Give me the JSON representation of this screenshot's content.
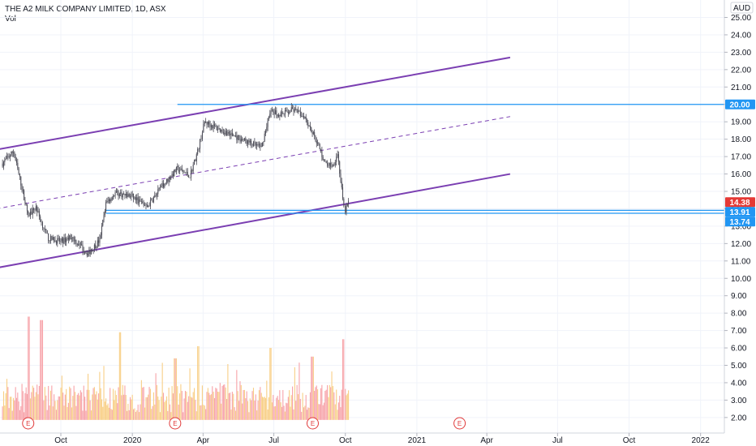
{
  "header": {
    "title": "THE A2 MILK COMPANY LIMITED, 1D, ASX",
    "sub": "Vol"
  },
  "currency": "AUD",
  "colors": {
    "channel": "#7b3fb2",
    "hline": "#2196f3",
    "price_tag_red": "#e53935",
    "price_tag_blue": "#2196f3",
    "candle_up": "#4a4a55",
    "candle_down": "#4a4a55",
    "vol_a": "#f7a3a9",
    "vol_b": "#f8cf86"
  },
  "chart_data": {
    "type": "candlestick",
    "y_axis": {
      "min": 2.0,
      "max": 25.0,
      "ticks": [
        "25.00",
        "24.00",
        "23.00",
        "22.00",
        "21.00",
        "20.00",
        "19.00",
        "18.00",
        "17.00",
        "16.00",
        "15.00",
        "14.00",
        "13.00",
        "12.00",
        "11.00",
        "10.00",
        "9.00",
        "8.00",
        "7.00",
        "6.00",
        "5.00",
        "4.00",
        "3.00",
        "2.00"
      ],
      "scale": "linear",
      "grid": true
    },
    "x_axis": {
      "ticks": [
        {
          "label": "Oct",
          "date": "2019-10-01"
        },
        {
          "label": "2020",
          "date": "2020-01-01"
        },
        {
          "label": "Apr",
          "date": "2020-04-01"
        },
        {
          "label": "Jul",
          "date": "2020-07-01"
        },
        {
          "label": "Oct",
          "date": "2020-10-01"
        },
        {
          "label": "2021",
          "date": "2021-01-01"
        },
        {
          "label": "Apr",
          "date": "2021-04-01"
        },
        {
          "label": "Jul",
          "date": "2021-07-01"
        },
        {
          "label": "Oct",
          "date": "2021-10-01"
        },
        {
          "label": "2022",
          "date": "2022-01-01"
        }
      ]
    },
    "price_path": [
      {
        "date": "2019-07-18",
        "price": 16.6
      },
      {
        "date": "2019-08-01",
        "price": 17.3
      },
      {
        "date": "2019-08-12",
        "price": 15.2
      },
      {
        "date": "2019-08-20",
        "price": 13.6
      },
      {
        "date": "2019-08-30",
        "price": 14.1
      },
      {
        "date": "2019-09-06",
        "price": 13.2
      },
      {
        "date": "2019-09-15",
        "price": 12.3
      },
      {
        "date": "2019-10-01",
        "price": 12.1
      },
      {
        "date": "2019-10-15",
        "price": 12.4
      },
      {
        "date": "2019-10-25",
        "price": 11.9
      },
      {
        "date": "2019-11-05",
        "price": 11.4
      },
      {
        "date": "2019-11-20",
        "price": 12.2
      },
      {
        "date": "2019-11-28",
        "price": 14.3
      },
      {
        "date": "2019-12-10",
        "price": 14.9
      },
      {
        "date": "2020-01-01",
        "price": 14.7
      },
      {
        "date": "2020-01-20",
        "price": 14.1
      },
      {
        "date": "2020-02-10",
        "price": 15.4
      },
      {
        "date": "2020-02-28",
        "price": 16.3
      },
      {
        "date": "2020-03-15",
        "price": 15.9
      },
      {
        "date": "2020-03-25",
        "price": 17.3
      },
      {
        "date": "2020-04-03",
        "price": 19.0
      },
      {
        "date": "2020-04-20",
        "price": 18.6
      },
      {
        "date": "2020-05-10",
        "price": 18.2
      },
      {
        "date": "2020-05-30",
        "price": 17.8
      },
      {
        "date": "2020-06-15",
        "price": 17.5
      },
      {
        "date": "2020-06-26",
        "price": 19.6
      },
      {
        "date": "2020-07-10",
        "price": 19.4
      },
      {
        "date": "2020-07-25",
        "price": 19.7
      },
      {
        "date": "2020-08-10",
        "price": 19.3
      },
      {
        "date": "2020-08-25",
        "price": 17.9
      },
      {
        "date": "2020-09-05",
        "price": 16.6
      },
      {
        "date": "2020-09-15",
        "price": 16.5
      },
      {
        "date": "2020-09-21",
        "price": 17.2
      },
      {
        "date": "2020-09-25",
        "price": 15.6
      },
      {
        "date": "2020-09-29",
        "price": 14.0
      },
      {
        "date": "2020-10-01",
        "price": 13.9
      },
      {
        "date": "2020-10-05",
        "price": 14.38
      }
    ],
    "channel_lines": [
      {
        "name": "upper",
        "start": {
          "date": "2019-07-10",
          "price": 17.4
        },
        "end": {
          "date": "2021-05-01",
          "price": 22.7
        },
        "style": "solid"
      },
      {
        "name": "middle",
        "start": {
          "date": "2019-07-10",
          "price": 14.0
        },
        "end": {
          "date": "2021-05-01",
          "price": 19.3
        },
        "style": "dashed"
      },
      {
        "name": "lower",
        "start": {
          "date": "2019-07-10",
          "price": 10.6
        },
        "end": {
          "date": "2021-05-01",
          "price": 16.0
        },
        "style": "solid"
      }
    ],
    "horizontal_lines": [
      {
        "price": 20.0,
        "start": "2020-02-28",
        "label": "20.00"
      },
      {
        "price": 13.91,
        "start": "2019-11-28",
        "label": "13.91"
      },
      {
        "price": 13.74,
        "start": "2019-11-28",
        "label": "13.74"
      }
    ],
    "price_tags": [
      {
        "label": "14.38",
        "price": 14.38,
        "color": "red"
      },
      {
        "label": "20.00",
        "price": 20.0,
        "color": "blue"
      },
      {
        "label": "13.91",
        "price": 13.91,
        "color": "blue"
      },
      {
        "label": "13.74",
        "price": 13.74,
        "color": "blue"
      }
    ],
    "earnings_markers": [
      {
        "date": "2019-08-20",
        "label": "E"
      },
      {
        "date": "2020-02-25",
        "label": "E"
      },
      {
        "date": "2020-08-20",
        "label": "E"
      },
      {
        "date": "2021-02-25",
        "label": "E"
      }
    ],
    "volume_spikes": [
      {
        "date": "2019-08-20",
        "price": 7.8
      },
      {
        "date": "2019-09-06",
        "price": 7.6
      },
      {
        "date": "2020-02-25",
        "price": 5.4
      },
      {
        "date": "2020-03-25",
        "price": 6.1
      },
      {
        "date": "2019-12-16",
        "price": 6.9
      },
      {
        "date": "2020-06-26",
        "price": 6.0
      },
      {
        "date": "2020-08-20",
        "price": 5.5
      },
      {
        "date": "2020-09-28",
        "price": 6.5
      }
    ]
  }
}
